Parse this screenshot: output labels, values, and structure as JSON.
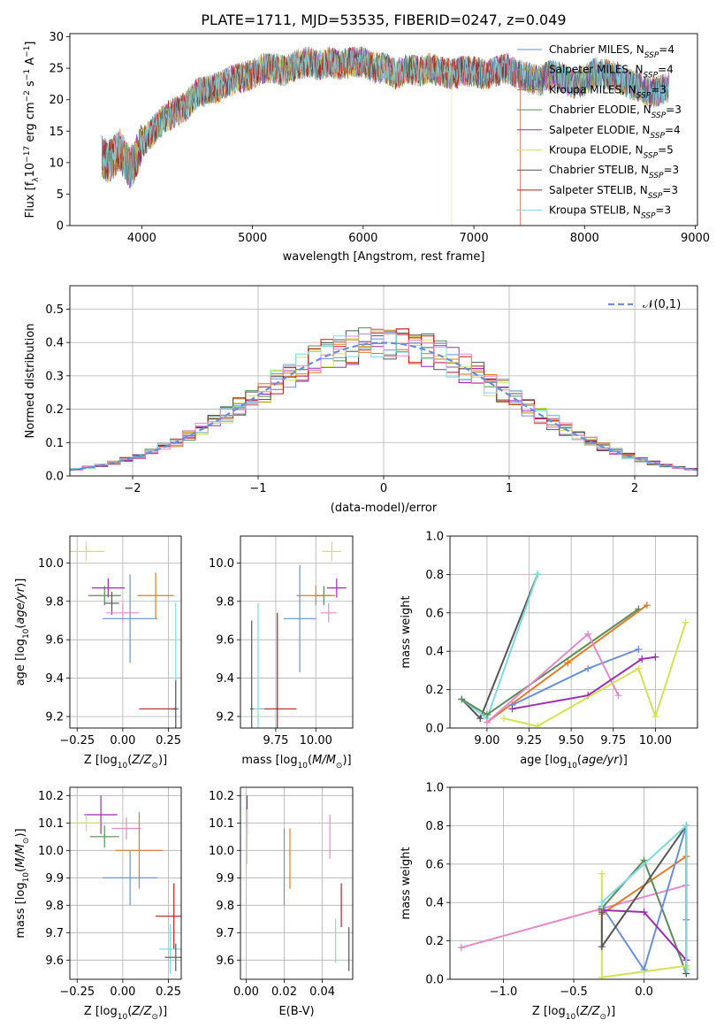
{
  "chart_data": [
    {
      "id": "spectrum",
      "type": "line",
      "title": "PLATE=1711, MJD=53535, FIBERID=0247, z=0.049",
      "xlabel": "wavelength [Angstrom, rest frame]",
      "ylabel": "Flux [f_λ 10^-17 erg cm^-2 s^-1 A^-1]",
      "xlim": [
        3350,
        9020
      ],
      "ylim": [
        0,
        30.5
      ],
      "xticks": [
        4000,
        5000,
        6000,
        7000,
        8000,
        9000
      ],
      "yticks": [
        0,
        5,
        10,
        15,
        20,
        25,
        30
      ],
      "grid": false,
      "legend_placement": "top-right",
      "series": [
        {
          "name": "Chabrier MILES, N_SSP=4",
          "color": "#6a8fd8"
        },
        {
          "name": "Salpeter MILES, N_SSP=4",
          "color": "#e07b27"
        },
        {
          "name": "Kroupa MILES, N_SSP=3",
          "color": "#c47a1e"
        },
        {
          "name": "Chabrier ELODIE, N_SSP=3",
          "color": "#5b8c5a"
        },
        {
          "name": "Salpeter ELODIE, N_SSP=4",
          "color": "#9b2fae"
        },
        {
          "name": "Kroupa ELODIE, N_SSP=5",
          "color": "#d4e157"
        },
        {
          "name": "Chabrier STELIB, N_SSP=3",
          "color": "#555555"
        },
        {
          "name": "Salpeter STELIB, N_SSP=3",
          "color": "#b71c1c"
        },
        {
          "name": "Kroupa STELIB, N_SSP=3",
          "color": "#7fd8e0"
        }
      ],
      "envelope": {
        "x": [
          3640,
          3700,
          3800,
          3900,
          4000,
          4100,
          4200,
          4300,
          4400,
          4500,
          4600,
          4700,
          4800,
          4900,
          5000,
          5100,
          5200,
          5300,
          5400,
          5500,
          5600,
          5700,
          5800,
          5900,
          6000,
          6100,
          6200,
          6300,
          6400,
          6500,
          6600,
          6700,
          6800,
          6900,
          7000,
          7100,
          7200,
          7300,
          7400,
          7500,
          7600,
          7700,
          7800,
          7900,
          8000,
          8100,
          8200,
          8300,
          8400,
          8500,
          8600,
          8700,
          8760
        ],
        "y": [
          11,
          10,
          12,
          9,
          13,
          15,
          17,
          18,
          19,
          21,
          21.5,
          22,
          23,
          23.5,
          24,
          25,
          25,
          24.5,
          25.5,
          26,
          25.5,
          26,
          25.5,
          26,
          26,
          25,
          25,
          24,
          25,
          24.5,
          25,
          24.5,
          24,
          24.5,
          24.5,
          24,
          24.5,
          25,
          24,
          23.5,
          23,
          24,
          23.5,
          22.5,
          23,
          24.5,
          24,
          23.5,
          22.5,
          22,
          21,
          21.5,
          22
        ]
      }
    },
    {
      "id": "residuals",
      "type": "line",
      "xlabel": "(data-model)/error",
      "ylabel": "Normed distribution",
      "xlim": [
        -2.5,
        2.5
      ],
      "ylim": [
        0,
        0.57
      ],
      "xticks": [
        -2,
        -1,
        0,
        1,
        2
      ],
      "yticks": [
        0.0,
        0.1,
        0.2,
        0.3,
        0.4,
        0.5
      ],
      "grid": true,
      "legend_placement": "top-right",
      "reference": {
        "name": "𝒩(0,1)",
        "mu": 0,
        "sigma": 1,
        "color": "#6a8fd8"
      },
      "bin_width": 0.1
    },
    {
      "id": "age-vs-Z",
      "type": "scatter",
      "xlabel": "Z [log10(Z/Z⊙)]",
      "ylabel": "age  [log10(age/yr)]",
      "xlim": [
        -0.29,
        0.32
      ],
      "ylim": [
        9.14,
        10.14
      ],
      "xticks": [
        -0.25,
        0.0,
        0.25
      ],
      "yticks": [
        9.2,
        9.4,
        9.6,
        9.8,
        10.0
      ],
      "grid": true,
      "points": [
        {
          "color": "#d4e157",
          "x": -0.2,
          "y": 10.06,
          "xerr": 0.1,
          "yerr": 0.05
        },
        {
          "color": "#9b2fae",
          "x": -0.08,
          "y": 9.87,
          "xerr": 0.09,
          "yerr": 0.05
        },
        {
          "color": "#5b8c5a",
          "x": -0.1,
          "y": 9.83,
          "xerr": 0.09,
          "yerr": 0.05
        },
        {
          "color": "#555555",
          "x": -0.06,
          "y": 9.79,
          "xerr": 0.04,
          "yerr": 0.06
        },
        {
          "color": "#e58ac8",
          "x": 0.0,
          "y": 9.74,
          "xerr": 0.09,
          "yerr": 0.05
        },
        {
          "color": "#6a8fd8",
          "x": 0.04,
          "y": 9.71,
          "xerr": 0.15,
          "yerr": 0.23
        },
        {
          "color": "#e07b27",
          "x": 0.18,
          "y": 9.83,
          "xerr": 0.1,
          "yerr": 0.12
        },
        {
          "color": "#7fd8e0",
          "x": 0.29,
          "y": 9.24,
          "xerr": 0.02,
          "yerr": 0.55
        },
        {
          "color": "#555555",
          "x": 0.29,
          "y": 9.24,
          "xerr": 0.01,
          "yerr": 0.15
        },
        {
          "color": "#b71c1c",
          "x": 0.19,
          "y": 9.24,
          "xerr": 0.1,
          "yerr": 0.0
        }
      ]
    },
    {
      "id": "age-vs-mass",
      "type": "scatter",
      "xlabel": "mass [log10(M/M⊙)]",
      "ylabel": "",
      "xlim": [
        9.53,
        10.23
      ],
      "ylim": [
        9.14,
        10.14
      ],
      "xticks": [
        9.75,
        10.0
      ],
      "yticks": [
        9.2,
        9.4,
        9.6,
        9.8,
        10.0
      ],
      "grid": true,
      "points": [
        {
          "color": "#d4e157",
          "x": 10.1,
          "y": 10.06,
          "xerr": 0.06,
          "yerr": 0.05
        },
        {
          "color": "#9b2fae",
          "x": 10.13,
          "y": 9.87,
          "xerr": 0.06,
          "yerr": 0.05
        },
        {
          "color": "#5b8c5a",
          "x": 10.05,
          "y": 9.83,
          "xerr": 0.05,
          "yerr": 0.05
        },
        {
          "color": "#e58ac8",
          "x": 10.08,
          "y": 9.74,
          "xerr": 0.05,
          "yerr": 0.05
        },
        {
          "color": "#e07b27",
          "x": 10.0,
          "y": 9.83,
          "xerr": 0.12,
          "yerr": 0.05
        },
        {
          "color": "#6a8fd8",
          "x": 9.9,
          "y": 9.71,
          "xerr": 0.1,
          "yerr": 0.28
        },
        {
          "color": "#b71c1c",
          "x": 9.76,
          "y": 9.24,
          "xerr": 0.12,
          "yerr": 0.5
        },
        {
          "color": "#7fd8e0",
          "x": 9.64,
          "y": 9.24,
          "xerr": 0.04,
          "yerr": 0.55
        },
        {
          "color": "#555555",
          "x": 9.6,
          "y": 9.24,
          "xerr": 0.01,
          "yerr": 0.46
        }
      ]
    },
    {
      "id": "mass-weight-vs-age",
      "type": "line",
      "xlabel": "age  [log10(age/yr)]",
      "ylabel": "mass weight",
      "xlim": [
        8.78,
        10.25
      ],
      "ylim": [
        0,
        1.0
      ],
      "xticks": [
        9.0,
        9.25,
        9.5,
        9.75,
        10.0
      ],
      "yticks": [
        0.0,
        0.2,
        0.4,
        0.6,
        0.8,
        1.0
      ],
      "grid": true,
      "series": [
        {
          "color": "#555555",
          "x": [
            8.85,
            8.96,
            9.3
          ],
          "y": [
            0.15,
            0.05,
            0.8
          ]
        },
        {
          "color": "#7fd8e0",
          "x": [
            8.85,
            9.0,
            9.3
          ],
          "y": [
            0.15,
            0.05,
            0.8
          ]
        },
        {
          "color": "#5b8c5a",
          "x": [
            8.85,
            9.0,
            9.9
          ],
          "y": [
            0.15,
            0.07,
            0.62
          ]
        },
        {
          "color": "#e07b27",
          "x": [
            9.0,
            9.48,
            9.95
          ],
          "y": [
            0.03,
            0.34,
            0.64
          ]
        },
        {
          "color": "#6a8fd8",
          "x": [
            9.15,
            9.6,
            9.9
          ],
          "y": [
            0.12,
            0.31,
            0.41
          ]
        },
        {
          "color": "#e58ac8",
          "x": [
            9.0,
            9.6,
            9.78
          ],
          "y": [
            0.03,
            0.49,
            0.17
          ]
        },
        {
          "color": "#9b2fae",
          "x": [
            9.15,
            9.6,
            9.92,
            10.0
          ],
          "y": [
            0.1,
            0.17,
            0.36,
            0.37
          ]
        },
        {
          "color": "#d4e157",
          "x": [
            9.1,
            9.3,
            9.9,
            10.0,
            10.18
          ],
          "y": [
            0.05,
            0.01,
            0.31,
            0.06,
            0.55
          ]
        }
      ]
    },
    {
      "id": "mass-vs-Z",
      "type": "scatter",
      "xlabel": "Z [log10(Z/Z⊙)]",
      "ylabel": "mass [log10(M/M⊙)]",
      "xlim": [
        -0.29,
        0.32
      ],
      "ylim": [
        9.53,
        10.23
      ],
      "xticks": [
        -0.25,
        0.0,
        0.25
      ],
      "yticks": [
        9.6,
        9.7,
        9.8,
        9.9,
        10.0,
        10.1,
        10.2
      ],
      "grid": true,
      "points": [
        {
          "color": "#9b2fae",
          "x": -0.12,
          "y": 10.13,
          "xerr": 0.09,
          "yerr": 0.07
        },
        {
          "color": "#d4e157",
          "x": -0.2,
          "y": 10.1,
          "xerr": 0.08,
          "yerr": 0.03
        },
        {
          "color": "#e58ac8",
          "x": 0.02,
          "y": 10.08,
          "xerr": 0.08,
          "yerr": 0.04
        },
        {
          "color": "#5b8c5a",
          "x": -0.1,
          "y": 10.05,
          "xerr": 0.08,
          "yerr": 0.04
        },
        {
          "color": "#e07b27",
          "x": 0.09,
          "y": 10.0,
          "xerr": 0.13,
          "yerr": 0.14
        },
        {
          "color": "#6a8fd8",
          "x": 0.04,
          "y": 9.9,
          "xerr": 0.15,
          "yerr": 0.1
        },
        {
          "color": "#b71c1c",
          "x": 0.28,
          "y": 9.76,
          "xerr": 0.1,
          "yerr": 0.12
        },
        {
          "color": "#7fd8e0",
          "x": 0.26,
          "y": 9.64,
          "xerr": 0.06,
          "yerr": 0.09
        },
        {
          "color": "#555555",
          "x": 0.29,
          "y": 9.61,
          "xerr": 0.06,
          "yerr": 0.05
        }
      ]
    },
    {
      "id": "mass-vs-ebv",
      "type": "scatter",
      "xlabel": "E(B-V)",
      "ylabel": "",
      "xlim": [
        -0.003,
        0.056
      ],
      "ylim": [
        9.53,
        10.23
      ],
      "xticks": [
        0.0,
        0.02,
        0.04
      ],
      "yticks": [
        9.6,
        9.7,
        9.8,
        9.9,
        10.0,
        10.1,
        10.2
      ],
      "grid": true,
      "points": [
        {
          "color": "#9b2fae",
          "x": 0.0005,
          "y": 10.13,
          "yerr": 0.07
        },
        {
          "color": "#d4e157",
          "x": 0.0005,
          "y": 10.05,
          "yerr": 0.1
        },
        {
          "color": "#e58ac8",
          "x": 0.044,
          "y": 10.05,
          "yerr": 0.08
        },
        {
          "color": "#6a8fd8",
          "x": 0.02,
          "y": 9.94,
          "yerr": 0.14
        },
        {
          "color": "#e07b27",
          "x": 0.023,
          "y": 9.97,
          "yerr": 0.11
        },
        {
          "color": "#b71c1c",
          "x": 0.05,
          "y": 9.8,
          "yerr": 0.08
        },
        {
          "color": "#7fd8e0",
          "x": 0.047,
          "y": 9.67,
          "yerr": 0.08
        },
        {
          "color": "#555555",
          "x": 0.054,
          "y": 9.64,
          "yerr": 0.08
        }
      ]
    },
    {
      "id": "mass-weight-vs-Z",
      "type": "line",
      "xlabel": "Z [log10(Z/Z⊙)]",
      "ylabel": "mass weight",
      "xlim": [
        -1.38,
        0.38
      ],
      "ylim": [
        0,
        1.0
      ],
      "xticks": [
        -1.0,
        -0.5,
        0.0
      ],
      "yticks": [
        0.0,
        0.2,
        0.4,
        0.6,
        0.8,
        1.0
      ],
      "grid": true,
      "series": [
        {
          "color": "#e58ac8",
          "x": [
            -1.3,
            0.3
          ],
          "y": [
            0.165,
            0.49
          ]
        },
        {
          "color": "#e07b27",
          "x": [
            -0.3,
            0.3
          ],
          "y": [
            0.34,
            0.64
          ]
        },
        {
          "color": "#5b8c5a",
          "x": [
            -0.3,
            0.0,
            0.3
          ],
          "y": [
            0.37,
            0.62,
            0.03
          ]
        },
        {
          "color": "#6a8fd8",
          "x": [
            -0.3,
            0.0,
            0.3,
            0.3
          ],
          "y": [
            0.38,
            0.05,
            0.8,
            0.31
          ]
        },
        {
          "color": "#9b2fae",
          "x": [
            -0.3,
            0.0,
            0.3
          ],
          "y": [
            0.36,
            0.35,
            0.1
          ]
        },
        {
          "color": "#d4e157",
          "x": [
            -0.3,
            -0.3,
            0.3,
            0.3
          ],
          "y": [
            0.55,
            0.01,
            0.07,
            0.06
          ]
        },
        {
          "color": "#555555",
          "x": [
            -0.3,
            -0.3,
            0.3,
            0.3
          ],
          "y": [
            0.35,
            0.17,
            0.8,
            0.03
          ]
        },
        {
          "color": "#7fd8e0",
          "x": [
            -0.3,
            0.3,
            0.3
          ],
          "y": [
            0.4,
            0.8,
            0.05
          ]
        }
      ]
    }
  ]
}
